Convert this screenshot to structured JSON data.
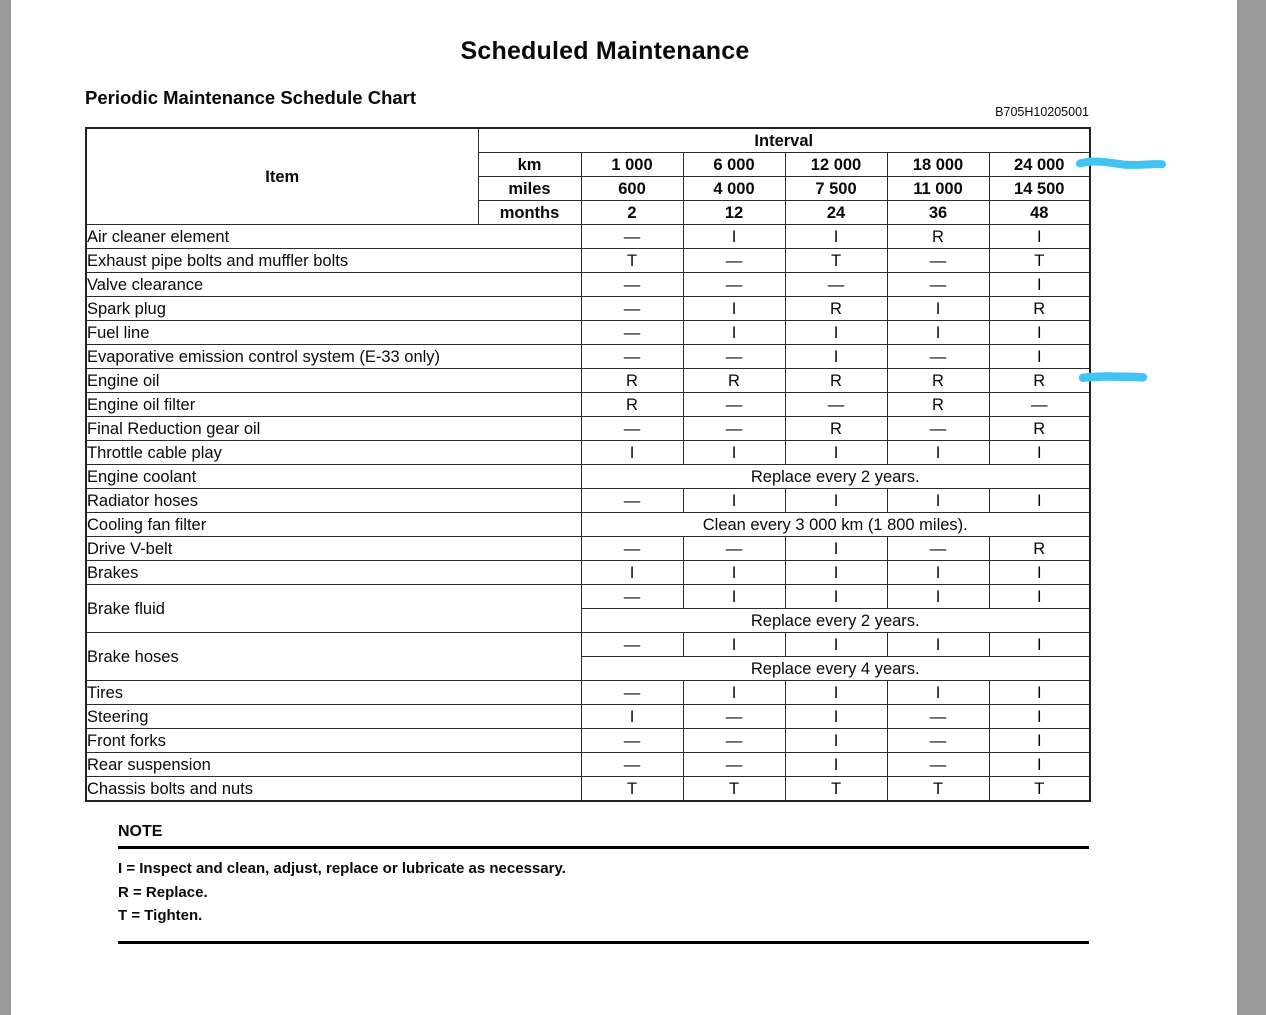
{
  "page": {
    "title": "Scheduled Maintenance",
    "subtitle": "Periodic Maintenance Schedule Chart",
    "figure_code": "B705H10205001"
  },
  "table": {
    "item_header": "Item",
    "interval_header": "Interval",
    "unit_rows": [
      {
        "unit": "km",
        "values": [
          "1 000",
          "6 000",
          "12 000",
          "18 000",
          "24 000"
        ]
      },
      {
        "unit": "miles",
        "values": [
          "600",
          "4 000",
          "7 500",
          "11 000",
          "14 500"
        ]
      },
      {
        "unit": "months",
        "values": [
          "2",
          "12",
          "24",
          "36",
          "48"
        ]
      }
    ],
    "rows": [
      {
        "item": "Air cleaner element",
        "values": [
          "—",
          "I",
          "I",
          "R",
          "I"
        ]
      },
      {
        "item": "Exhaust pipe bolts and muffler bolts",
        "values": [
          "T",
          "—",
          "T",
          "—",
          "T"
        ]
      },
      {
        "item": "Valve clearance",
        "values": [
          "—",
          "—",
          "—",
          "—",
          "I"
        ]
      },
      {
        "item": "Spark plug",
        "values": [
          "—",
          "I",
          "R",
          "I",
          "R"
        ]
      },
      {
        "item": "Fuel line",
        "values": [
          "—",
          "I",
          "I",
          "I",
          "I"
        ]
      },
      {
        "item": "Evaporative emission control system (E-33 only)",
        "values": [
          "—",
          "—",
          "I",
          "—",
          "I"
        ]
      },
      {
        "item": "Engine oil",
        "values": [
          "R",
          "R",
          "R",
          "R",
          "R"
        ]
      },
      {
        "item": "Engine oil filter",
        "values": [
          "R",
          "—",
          "—",
          "R",
          "—"
        ]
      },
      {
        "item": "Final Reduction gear oil",
        "values": [
          "—",
          "—",
          "R",
          "—",
          "R"
        ]
      },
      {
        "item": "Throttle cable play",
        "values": [
          "I",
          "I",
          "I",
          "I",
          "I"
        ]
      },
      {
        "item": "Engine coolant",
        "span": "Replace every 2 years."
      },
      {
        "item": "Radiator hoses",
        "values": [
          "—",
          "I",
          "I",
          "I",
          "I"
        ]
      },
      {
        "item": "Cooling fan filter",
        "span": "Clean every 3 000 km (1 800 miles)."
      },
      {
        "item": "Drive V-belt",
        "values": [
          "—",
          "—",
          "I",
          "—",
          "R"
        ]
      },
      {
        "item": "Brakes",
        "values": [
          "I",
          "I",
          "I",
          "I",
          "I"
        ]
      },
      {
        "item": "Brake fluid",
        "sub": [
          {
            "values": [
              "—",
              "I",
              "I",
              "I",
              "I"
            ]
          },
          {
            "span": "Replace every 2 years."
          }
        ]
      },
      {
        "item": "Brake hoses",
        "sub": [
          {
            "values": [
              "—",
              "I",
              "I",
              "I",
              "I"
            ]
          },
          {
            "span": "Replace every 4 years."
          }
        ]
      },
      {
        "item": "Tires",
        "values": [
          "—",
          "I",
          "I",
          "I",
          "I"
        ]
      },
      {
        "item": "Steering",
        "values": [
          "I",
          "—",
          "I",
          "—",
          "I"
        ]
      },
      {
        "item": "Front forks",
        "values": [
          "—",
          "—",
          "I",
          "—",
          "I"
        ]
      },
      {
        "item": "Rear suspension",
        "values": [
          "—",
          "—",
          "I",
          "—",
          "I"
        ]
      },
      {
        "item": "Chassis bolts and nuts",
        "values": [
          "T",
          "T",
          "T",
          "T",
          "T"
        ]
      }
    ]
  },
  "note": {
    "heading": "NOTE",
    "lines": [
      "I = Inspect and clean, adjust, replace or lubricate as necessary.",
      "R = Replace.",
      "T = Tighten."
    ]
  },
  "annotations": {
    "highlight_color": "#41c4f2",
    "marks": [
      "highlight-24000-interval",
      "highlight-engine-oil-row"
    ]
  },
  "colors": {
    "page_background": "#ffffff",
    "gutter_gray": "#9a9a9a",
    "table_border": "#2b2b2b",
    "text": "#0a0a0a"
  }
}
